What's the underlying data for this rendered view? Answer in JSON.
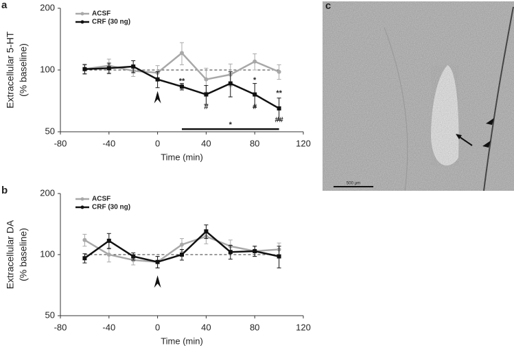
{
  "chart_data": [
    {
      "type": "line",
      "panel_label": "a",
      "ylabel": [
        "Extracellular 5-HT",
        "(% baseline)"
      ],
      "xlabel": "Time (min)",
      "x": [
        -60,
        -40,
        -20,
        0,
        20,
        40,
        60,
        80,
        100
      ],
      "series": [
        {
          "name": "ACSF",
          "color": "#a8a8a8",
          "marker": "circle",
          "values": [
            101,
            105,
            99,
            97,
            121,
            90,
            95,
            110,
            98
          ],
          "errors": [
            6,
            8,
            6,
            8,
            15,
            12,
            12,
            10,
            8
          ]
        },
        {
          "name": "CRF (30 ng)",
          "color": "#111111",
          "marker": "square",
          "values": [
            101,
            102,
            104,
            90,
            83,
            76,
            86,
            76,
            65
          ],
          "errors": [
            5,
            6,
            7,
            8,
            3,
            8,
            12,
            10,
            8
          ]
        }
      ],
      "xlim": [
        -80,
        120
      ],
      "xticks": [
        -80,
        -40,
        0,
        40,
        80,
        120
      ],
      "ylim": [
        50,
        200
      ],
      "yticks": [
        50,
        100,
        200
      ],
      "log_y": true,
      "legend": "upper left",
      "reference_line": 100,
      "arrow": {
        "x": 0,
        "y": 79
      },
      "sig_bar": {
        "x": [
          20,
          100
        ],
        "y": 51.5
      },
      "annotations": [
        {
          "text": "**",
          "x": 20,
          "y": 88
        },
        {
          "text": "#",
          "x": 40,
          "y": 66
        },
        {
          "text": "*",
          "x": 80,
          "y": 89
        },
        {
          "text": "#",
          "x": 80,
          "y": 66
        },
        {
          "text": "**",
          "x": 100,
          "y": 77
        },
        {
          "text": "##",
          "x": 100,
          "y": 57
        },
        {
          "text": "*",
          "x": 60,
          "y": 54
        }
      ]
    },
    {
      "type": "line",
      "panel_label": "b",
      "ylabel": [
        "Extracellular DA",
        "(% baseline)"
      ],
      "xlabel": "Time (min)",
      "x": [
        -60,
        -40,
        -20,
        0,
        20,
        40,
        60,
        80,
        100
      ],
      "series": [
        {
          "name": "ACSF",
          "color": "#a8a8a8",
          "marker": "circle",
          "values": [
            118,
            100,
            94,
            92,
            112,
            123,
            110,
            104,
            106
          ],
          "errors": [
            8,
            8,
            5,
            6,
            8,
            10,
            8,
            6,
            8
          ]
        },
        {
          "name": "CRF (30 ng)",
          "color": "#111111",
          "marker": "square",
          "values": [
            96,
            117,
            98,
            92,
            100,
            130,
            103,
            104,
            98
          ],
          "errors": [
            5,
            10,
            4,
            6,
            6,
            10,
            8,
            6,
            12
          ]
        }
      ],
      "xlim": [
        -80,
        120
      ],
      "xticks": [
        -80,
        -40,
        0,
        40,
        80,
        120
      ],
      "ylim": [
        50,
        200
      ],
      "yticks": [
        50,
        100,
        200
      ],
      "log_y": true,
      "legend": "upper left",
      "reference_line": 100,
      "arrow": {
        "x": 0,
        "y": 79
      },
      "annotations": []
    }
  ],
  "image": {
    "panel_label": "c",
    "scale_label": "500 µm"
  }
}
